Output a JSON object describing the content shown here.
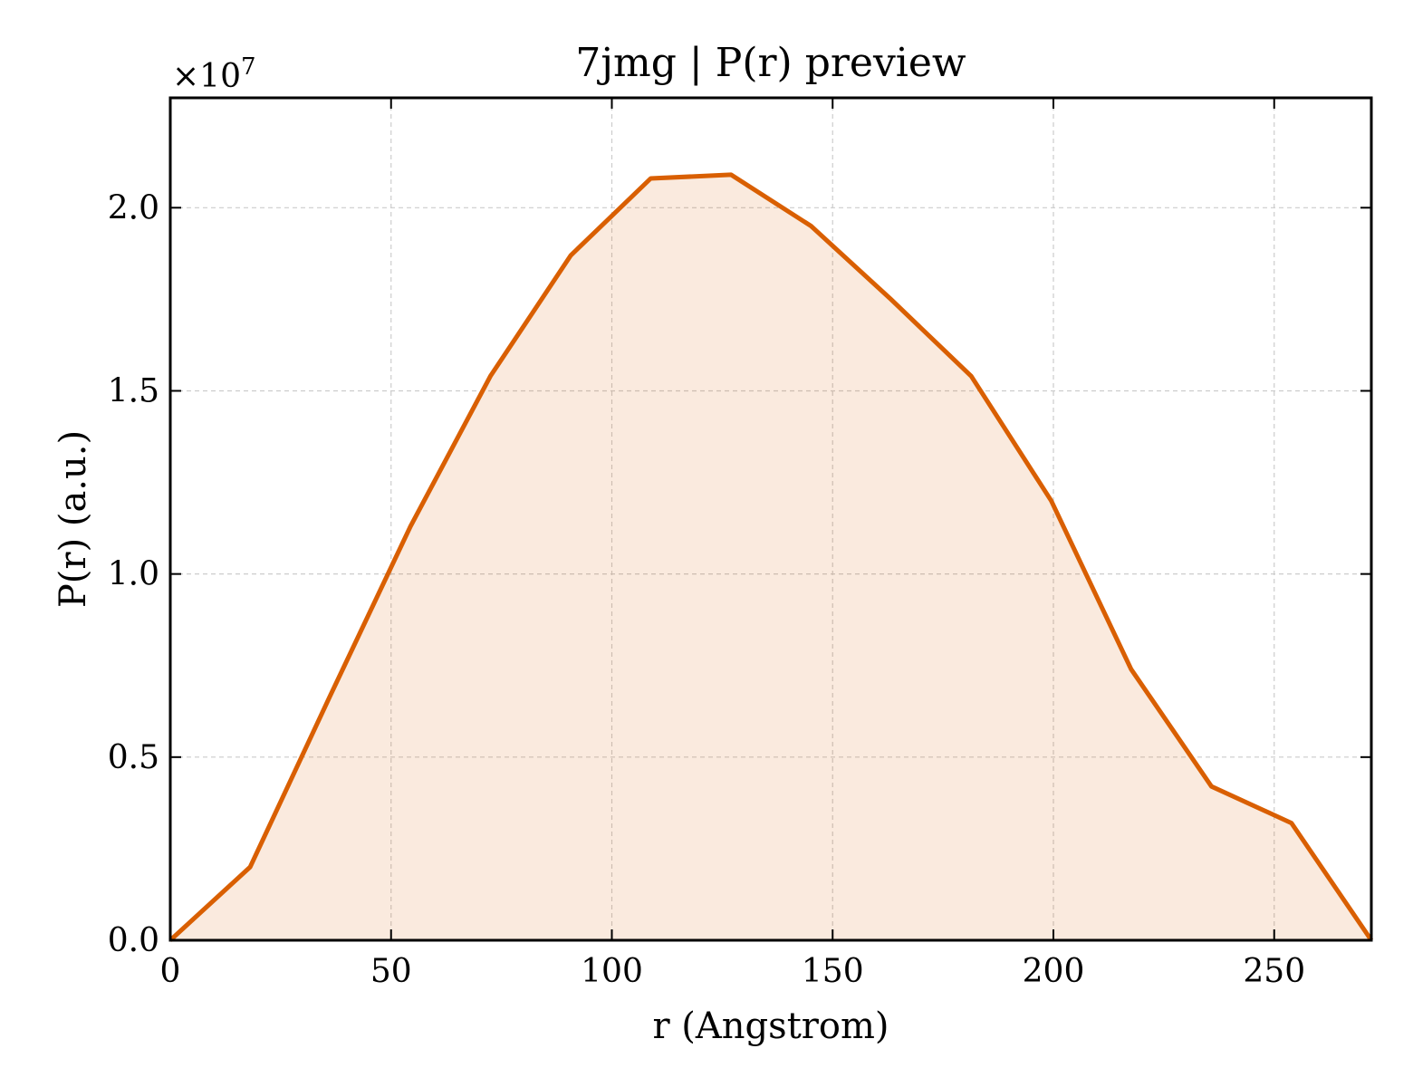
{
  "chart_data": {
    "type": "area",
    "title": "7jmg | P(r) preview",
    "xlabel": "r (Angstrom)",
    "ylabel": "P(r) (a.u.)",
    "y_multiplier": "×10",
    "y_multiplier_exp": "7",
    "xlim": [
      0,
      272
    ],
    "ylim": [
      0,
      2.3
    ],
    "x_ticks": [
      0,
      50,
      100,
      150,
      200,
      250
    ],
    "x_tick_labels": [
      "0",
      "50",
      "100",
      "150",
      "200",
      "250"
    ],
    "y_ticks": [
      0.0,
      0.5,
      1.0,
      1.5,
      2.0
    ],
    "y_tick_labels": [
      "0.0",
      "0.5",
      "1.0",
      "1.5",
      "2.0"
    ],
    "grid": true,
    "series": [
      {
        "color": "#d95f02",
        "fill_color": "#d95f02",
        "x": [
          0,
          18.1,
          36.3,
          54.4,
          72.5,
          90.7,
          108.8,
          127,
          145.1,
          163.2,
          181.4,
          199.5,
          217.6,
          235.8,
          253.9,
          272
        ],
        "y": [
          0.0,
          0.2,
          0.67,
          1.13,
          1.54,
          1.87,
          2.08,
          2.09,
          1.95,
          1.75,
          1.54,
          1.2,
          0.74,
          0.42,
          0.32,
          0.0
        ]
      }
    ]
  }
}
